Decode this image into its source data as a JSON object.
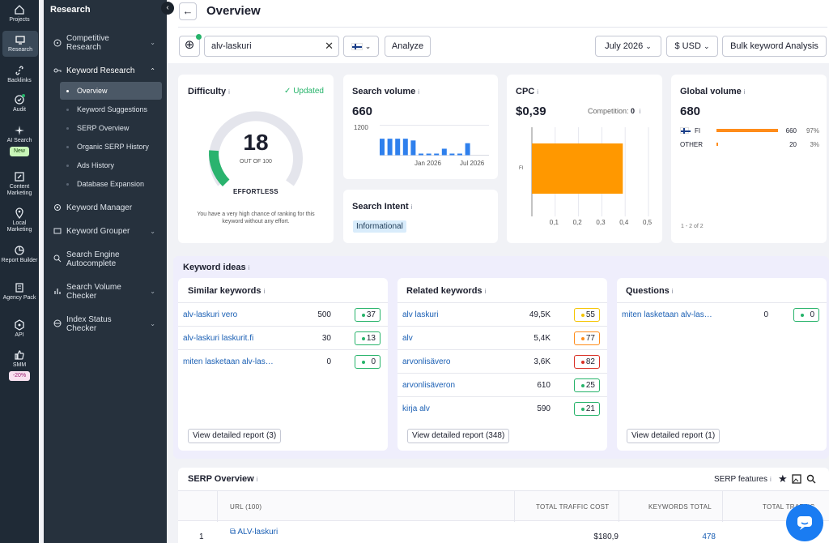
{
  "rail": {
    "items": [
      {
        "label": "Projects",
        "icon": "home-icon"
      },
      {
        "label": "Research",
        "icon": "monitor-icon"
      },
      {
        "label": "Backlinks",
        "icon": "link-icon"
      },
      {
        "label": "Audit",
        "icon": "check-circle-icon"
      },
      {
        "label": "AI Search",
        "icon": "sparkle-icon",
        "badge": "New"
      },
      {
        "label": "Content Marketing",
        "icon": "edit-icon"
      },
      {
        "label": "Local Marketing",
        "icon": "pin-icon"
      },
      {
        "label": "Report Builder",
        "icon": "chart-icon"
      },
      {
        "label": "Agency Pack",
        "icon": "building-icon"
      },
      {
        "label": "API",
        "icon": "api-icon"
      },
      {
        "label": "SMM",
        "icon": "thumb-icon",
        "badge": "-20%"
      }
    ]
  },
  "panel": {
    "title": "Research",
    "nav": [
      {
        "label": "Competitive Research",
        "chevron": "down"
      },
      {
        "label": "Keyword Research",
        "chevron": "up"
      },
      {
        "label": "Keyword Manager"
      },
      {
        "label": "Keyword Grouper",
        "chevron": "down"
      },
      {
        "label": "Search Engine Autocomplete"
      },
      {
        "label": "Search Volume Checker",
        "chevron": "down"
      },
      {
        "label": "Index Status Checker",
        "chevron": "down"
      }
    ],
    "sub": [
      "Overview",
      "Keyword Suggestions",
      "SERP Overview",
      "Organic SERP History",
      "Ads History",
      "Database Expansion"
    ]
  },
  "header": {
    "title": "Overview",
    "back": "←"
  },
  "toolbar": {
    "search_value": "alv-laskuri",
    "analyze": "Analyze",
    "date": "July 2026",
    "currency": "$ USD",
    "bulk": "Bulk keyword Analysis"
  },
  "difficulty": {
    "title": "Difficulty",
    "status": "Updated",
    "score": "18",
    "out_of": "OUT OF 100",
    "label": "EFFORTLESS",
    "value": 18,
    "desc": "You have a very high chance of ranking for this keyword without any effort."
  },
  "volume": {
    "title": "Search volume",
    "value": "660",
    "ytick": "1200",
    "xticks": [
      "Jan 2026",
      "Jul 2026"
    ],
    "bars": [
      660,
      660,
      660,
      660,
      590,
      40,
      40,
      40,
      260,
      40,
      40,
      480
    ]
  },
  "intent": {
    "title": "Search Intent",
    "tag": "Informational"
  },
  "cpc": {
    "title": "CPC",
    "value": "$0,39",
    "competition_label": "Competition:",
    "competition": "0",
    "category": "FI",
    "bar_value": 0.39,
    "xticks": [
      "0,1",
      "0,2",
      "0,3",
      "0,4",
      "0,5"
    ]
  },
  "global": {
    "title": "Global volume",
    "value": "680",
    "rows": [
      {
        "country": "FI",
        "value": "660",
        "pct": "97%",
        "share": 0.97
      },
      {
        "country": "OTHER",
        "value": "20",
        "pct": "3%",
        "share": 0.03
      }
    ],
    "pager": "1 - 2 of 2"
  },
  "ideas": {
    "title": "Keyword ideas",
    "similar": {
      "title": "Similar keywords",
      "rows": [
        {
          "kw": "alv-laskuri vero",
          "vol": "500",
          "kd": "37",
          "c": "green"
        },
        {
          "kw": "alv-laskuri laskurit.fi",
          "vol": "30",
          "kd": "13",
          "c": "green"
        },
        {
          "kw": "miten lasketaan alv-las…",
          "vol": "0",
          "kd": "0",
          "c": "green"
        }
      ],
      "button": "View detailed report (3)"
    },
    "related": {
      "title": "Related keywords",
      "rows": [
        {
          "kw": "alv laskuri",
          "vol": "49,5K",
          "kd": "55",
          "c": "yellow"
        },
        {
          "kw": "alv",
          "vol": "5,4K",
          "kd": "77",
          "c": "orange"
        },
        {
          "kw": "arvonlisävero",
          "vol": "3,6K",
          "kd": "82",
          "c": "red"
        },
        {
          "kw": "arvonlisäveron",
          "vol": "610",
          "kd": "25",
          "c": "green"
        },
        {
          "kw": "kirja alv",
          "vol": "590",
          "kd": "21",
          "c": "green"
        }
      ],
      "button": "View detailed report (348)"
    },
    "questions": {
      "title": "Questions",
      "rows": [
        {
          "kw": "miten lasketaan alv-las…",
          "vol": "0",
          "kd": "0",
          "c": "green"
        }
      ],
      "button": "View detailed report (1)"
    }
  },
  "serp": {
    "title": "SERP Overview",
    "features": "SERP features",
    "columns": [
      "URL (100)",
      "TOTAL TRAFFIC COST",
      "KEYWORDS TOTAL",
      "TOTAL TRAFFIC"
    ],
    "row": {
      "rank": "1",
      "url": "ALV-laskuri",
      "cost": "$180,9",
      "keywords": "478"
    }
  },
  "colors": {
    "green": "#26b36a",
    "yellow": "#f5c400",
    "orange": "#ff8c1a",
    "red": "#d93025",
    "blue": "#2f80ed",
    "cpcbar": "#ff9800"
  }
}
